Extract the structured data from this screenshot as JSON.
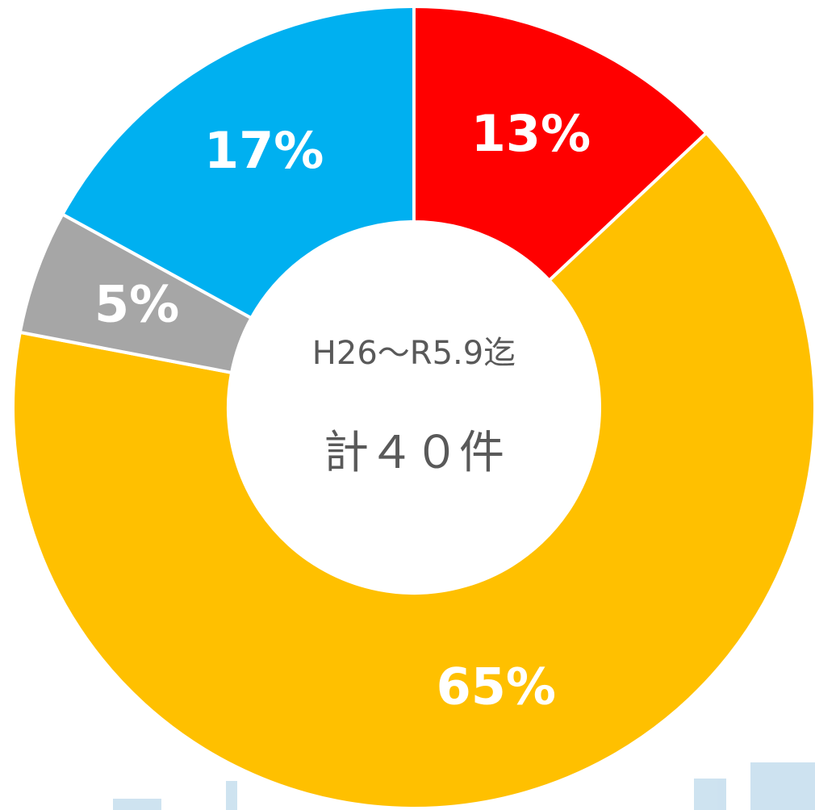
{
  "chart_data": {
    "type": "donut",
    "categories": [
      null,
      null,
      null,
      null
    ],
    "values": [
      13,
      65,
      5,
      17
    ],
    "value_labels": [
      "13%",
      "65%",
      "5%",
      "17%"
    ],
    "colors": [
      "#ff0000",
      "#ffc000",
      "#a6a6a6",
      "#00b0f0"
    ],
    "annotations": [
      "H26～R5.9迄",
      "計４０件"
    ]
  }
}
